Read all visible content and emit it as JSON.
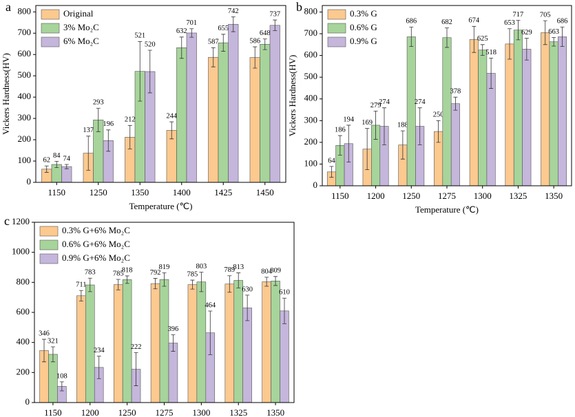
{
  "chart_data": [
    {
      "type": "bar",
      "label": "a",
      "xlabel": "Temperature (℃)",
      "ylabel": "Vickers Hardness(HV)",
      "categories": [
        "1150",
        "1250",
        "1350",
        "1400",
        "1425",
        "1450"
      ],
      "series": [
        {
          "name": "Original",
          "color": "#fcc98f",
          "values": [
            62,
            137,
            212,
            244,
            587,
            586
          ],
          "errors": [
            15,
            80,
            55,
            40,
            45,
            50
          ]
        },
        {
          "name": "3% Mo₂C",
          "color": "#a7d49b",
          "values": [
            84,
            293,
            521,
            632,
            655,
            648
          ],
          "errors": [
            15,
            55,
            140,
            50,
            40,
            25
          ]
        },
        {
          "name": "6% Mo₂C",
          "color": "#c5b6dc",
          "values": [
            74,
            196,
            520,
            701,
            742,
            737
          ],
          "errors": [
            10,
            50,
            100,
            20,
            35,
            25
          ]
        }
      ],
      "ylim": [
        0,
        830
      ],
      "yticks": [
        0,
        100,
        200,
        300,
        400,
        500,
        600,
        700,
        800
      ],
      "legend": "upper left"
    },
    {
      "type": "bar",
      "label": "b",
      "xlabel": "Temperature (℃)",
      "ylabel": "Vickers Hardness(HV)",
      "categories": [
        "1150",
        "1200",
        "1250",
        "1275",
        "1300",
        "1325",
        "1350"
      ],
      "series": [
        {
          "name": "0.3% G",
          "color": "#fcc98f",
          "values": [
            64,
            169,
            188,
            250,
            674,
            653,
            705
          ],
          "errors": [
            25,
            95,
            65,
            50,
            60,
            70,
            55
          ]
        },
        {
          "name": "0.6% G",
          "color": "#a7d49b",
          "values": [
            186,
            279,
            686,
            682,
            625,
            717,
            663
          ],
          "errors": [
            45,
            65,
            45,
            45,
            25,
            45,
            20
          ]
        },
        {
          "name": "0.9% G",
          "color": "#c5b6dc",
          "values": [
            194,
            274,
            274,
            378,
            518,
            629,
            686
          ],
          "errors": [
            85,
            85,
            85,
            30,
            70,
            50,
            45
          ]
        }
      ],
      "ylim": [
        0,
        830
      ],
      "yticks": [
        0,
        100,
        200,
        300,
        400,
        500,
        600,
        700,
        800
      ],
      "legend": "upper left"
    },
    {
      "type": "bar",
      "label": "c",
      "categories": [
        "1150",
        "1200",
        "1250",
        "1275",
        "1300",
        "1325",
        "1350"
      ],
      "series": [
        {
          "name": "0.3% G+6% Mo₂C",
          "color": "#fcc98f",
          "values": [
            346,
            711,
            785,
            792,
            785,
            789,
            804
          ],
          "errors": [
            75,
            35,
            35,
            35,
            30,
            55,
            30
          ]
        },
        {
          "name": "0.6% G+6% Mo₂C",
          "color": "#a7d49b",
          "values": [
            321,
            783,
            818,
            819,
            803,
            813,
            809
          ],
          "errors": [
            50,
            45,
            25,
            45,
            65,
            50,
            30
          ]
        },
        {
          "name": "0.9% G+6% Mo₂C",
          "color": "#c5b6dc",
          "values": [
            108,
            234,
            222,
            396,
            464,
            630,
            610
          ],
          "errors": [
            30,
            75,
            110,
            55,
            145,
            85,
            85
          ]
        }
      ],
      "ylim": [
        0,
        1200
      ],
      "yticks": [
        0,
        200,
        400,
        600,
        800,
        1000,
        1200
      ],
      "legend": "upper left"
    }
  ]
}
